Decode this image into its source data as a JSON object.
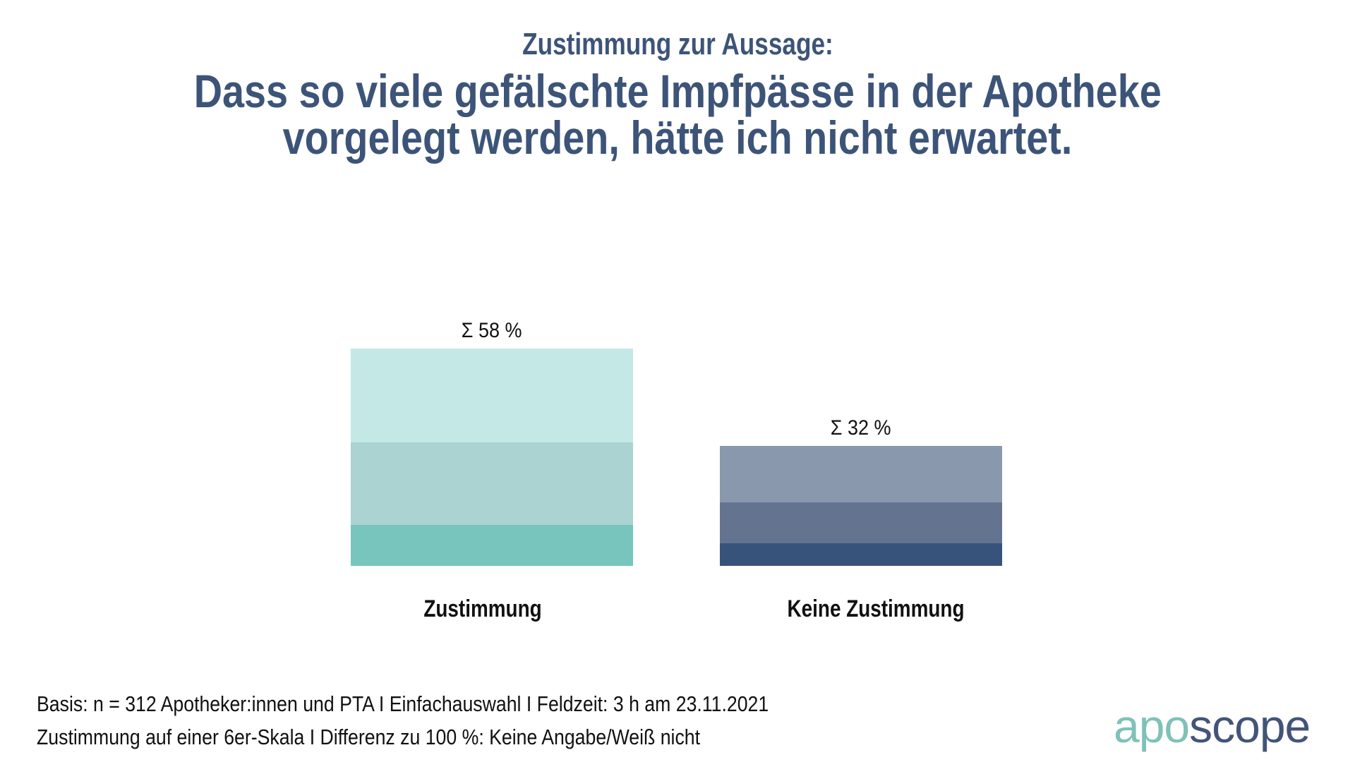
{
  "header": {
    "subtitle": "Zustimmung zur Aussage:",
    "title_lines": [
      "Dass so viele gefälschte Impfpässe in der Apotheke",
      "vorgelegt werden, hätte ich nicht erwartet."
    ]
  },
  "chart_data": {
    "type": "bar",
    "stacked": true,
    "title": "Dass so viele gefälschte Impfpässe in der Apotheke vorgelegt werden, hätte ich nicht erwartet.",
    "subtitle": "Zustimmung zur Aussage:",
    "xlabel": "",
    "ylabel": "",
    "ylim": [
      0,
      100
    ],
    "unit": "%",
    "grid": false,
    "categories": [
      "Zustimmung",
      "Keine Zustimmung"
    ],
    "bars": [
      {
        "category": "Zustimmung",
        "total_label": "Σ 58  %",
        "total": 58,
        "segments": [
          {
            "value": 11,
            "color": "#77c5bc"
          },
          {
            "value": 22,
            "color": "#aad3d2"
          },
          {
            "value": 25,
            "color": "#c4e8e5"
          }
        ]
      },
      {
        "category": "Keine Zustimmung",
        "total_label": "Σ 32  %",
        "total": 32,
        "segments": [
          {
            "value": 6,
            "color": "#37537b"
          },
          {
            "value": 11,
            "color": "#647490"
          },
          {
            "value": 15,
            "color": "#8a98ae"
          }
        ]
      }
    ]
  },
  "footer": {
    "line1": "Basis: n = 312 Apotheker:innen und PTA I Einfachauswahl I Feldzeit: 3 h am 23.11.2021",
    "line2": "Zustimmung auf einer 6er-Skala I Differenz zu 100 %: Keine Angabe/Weiß nicht"
  },
  "logo": {
    "part1": "apo",
    "part2": "scope",
    "color1": "#7fc1b8",
    "color2": "#435478"
  },
  "colors": {
    "title": "#3d5479",
    "text": "#111111",
    "background": "#ffffff"
  }
}
